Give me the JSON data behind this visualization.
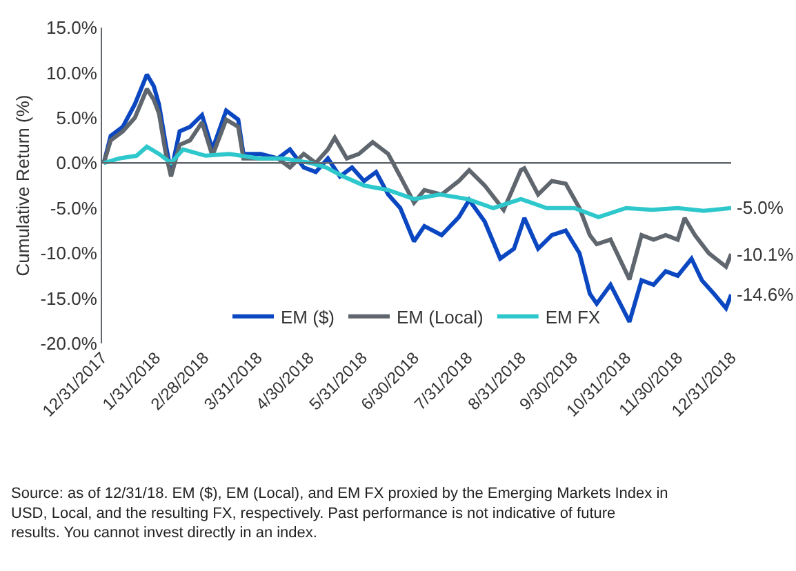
{
  "chart_data": {
    "type": "line",
    "ylabel": "Cumulative Return (%)",
    "xlim": [
      "2017-12-31",
      "2018-12-31"
    ],
    "xticks": [
      {
        "value": "2017-12-31",
        "label": "12/31/2017"
      },
      {
        "value": "2018-01-31",
        "label": "1/31/2018"
      },
      {
        "value": "2018-02-28",
        "label": "2/28/2018"
      },
      {
        "value": "2018-03-31",
        "label": "3/31/2018"
      },
      {
        "value": "2018-04-30",
        "label": "4/30/2018"
      },
      {
        "value": "2018-05-31",
        "label": "5/31/2018"
      },
      {
        "value": "2018-06-30",
        "label": "6/30/2018"
      },
      {
        "value": "2018-07-31",
        "label": "7/31/2018"
      },
      {
        "value": "2018-08-31",
        "label": "8/31/2018"
      },
      {
        "value": "2018-09-30",
        "label": "9/30/2018"
      },
      {
        "value": "2018-10-31",
        "label": "10/31/2018"
      },
      {
        "value": "2018-11-30",
        "label": "11/30/2018"
      },
      {
        "value": "2018-12-31",
        "label": "12/31/2018"
      }
    ],
    "ylim": [
      -20,
      15
    ],
    "yticks": [
      {
        "value": -20,
        "label": "-20.0%"
      },
      {
        "value": -15,
        "label": "-15.0%"
      },
      {
        "value": -10,
        "label": "-10.0%"
      },
      {
        "value": -5,
        "label": "-5.0%"
      },
      {
        "value": 0,
        "label": "0.0%"
      },
      {
        "value": 5,
        "label": "5.0%"
      },
      {
        "value": 10,
        "label": "10.0%"
      },
      {
        "value": 15,
        "label": "15.0%"
      }
    ],
    "grid": false,
    "legend": "bottom",
    "line_style": "solid",
    "marker": "none",
    "ref_lines": [
      {
        "axis": "y",
        "value": 0,
        "color": "#5f666d"
      }
    ],
    "series": [
      {
        "name": "EM ($)",
        "color": "#0b47c1",
        "x": [
          "2018-01-01",
          "2018-01-05",
          "2018-01-12",
          "2018-01-19",
          "2018-01-26",
          "2018-01-30",
          "2018-02-02",
          "2018-02-06",
          "2018-02-09",
          "2018-02-14",
          "2018-02-20",
          "2018-02-27",
          "2018-03-05",
          "2018-03-13",
          "2018-03-20",
          "2018-03-23",
          "2018-04-02",
          "2018-04-12",
          "2018-04-19",
          "2018-04-27",
          "2018-05-04",
          "2018-05-11",
          "2018-05-18",
          "2018-05-25",
          "2018-06-01",
          "2018-06-08",
          "2018-06-15",
          "2018-06-22",
          "2018-06-30",
          "2018-07-06",
          "2018-07-16",
          "2018-07-26",
          "2018-08-01",
          "2018-08-10",
          "2018-08-19",
          "2018-08-27",
          "2018-09-02",
          "2018-09-10",
          "2018-09-18",
          "2018-09-26",
          "2018-10-04",
          "2018-10-10",
          "2018-10-14",
          "2018-10-22",
          "2018-11-02",
          "2018-11-09",
          "2018-11-16",
          "2018-11-23",
          "2018-11-30",
          "2018-12-08",
          "2018-12-14",
          "2018-12-21",
          "2018-12-28",
          "2018-12-31"
        ],
        "values": [
          0,
          3,
          4,
          6.5,
          9.8,
          8.5,
          6.5,
          2,
          -1,
          3.5,
          4,
          5.3,
          1.5,
          5.8,
          4.8,
          1,
          1,
          0.5,
          1.5,
          -0.5,
          -1,
          0.5,
          -1.5,
          -0.5,
          -2,
          -1,
          -3.5,
          -5,
          -8.7,
          -7,
          -8,
          -6,
          -4.1,
          -6.5,
          -10.6,
          -9.5,
          -6.1,
          -9.5,
          -8,
          -7.5,
          -10,
          -14.5,
          -15.6,
          -13.5,
          -17.6,
          -13,
          -13.5,
          -12,
          -12.5,
          -10.6,
          -13,
          -14.5,
          -16.1,
          -14.6
        ]
      },
      {
        "name": "EM (Local)",
        "color": "#5f666d",
        "x": [
          "2018-01-01",
          "2018-01-05",
          "2018-01-12",
          "2018-01-19",
          "2018-01-26",
          "2018-01-30",
          "2018-02-02",
          "2018-02-06",
          "2018-02-09",
          "2018-02-14",
          "2018-02-20",
          "2018-02-27",
          "2018-03-05",
          "2018-03-13",
          "2018-03-20",
          "2018-03-23",
          "2018-04-02",
          "2018-04-12",
          "2018-04-19",
          "2018-04-27",
          "2018-05-04",
          "2018-05-11",
          "2018-05-15",
          "2018-05-22",
          "2018-05-29",
          "2018-06-06",
          "2018-06-15",
          "2018-06-22",
          "2018-06-30",
          "2018-07-06",
          "2018-07-16",
          "2018-07-26",
          "2018-08-01",
          "2018-08-10",
          "2018-08-21",
          "2018-08-31",
          "2018-09-02",
          "2018-09-10",
          "2018-09-18",
          "2018-09-26",
          "2018-10-04",
          "2018-10-10",
          "2018-10-14",
          "2018-10-22",
          "2018-11-02",
          "2018-11-09",
          "2018-11-16",
          "2018-11-23",
          "2018-11-30",
          "2018-12-04",
          "2018-12-10",
          "2018-12-18",
          "2018-12-28",
          "2018-12-31"
        ],
        "values": [
          0,
          2.5,
          3.5,
          5,
          8.2,
          7,
          5.5,
          1,
          -1.5,
          2,
          2.5,
          4.5,
          0.8,
          4.8,
          4,
          0.5,
          0.5,
          0.5,
          -0.5,
          1,
          0,
          1.5,
          2.8,
          0.5,
          1,
          2.3,
          1,
          -1.5,
          -4.4,
          -3,
          -3.5,
          -2,
          -0.8,
          -2.5,
          -5.2,
          -0.8,
          -0.6,
          -3.5,
          -2,
          -2.3,
          -5,
          -8,
          -9,
          -8.5,
          -12.9,
          -8,
          -8.5,
          -8,
          -8.5,
          -6.1,
          -8,
          -10,
          -11.5,
          -10.1
        ]
      },
      {
        "name": "EM FX",
        "color": "#2ec8cc",
        "x": [
          "2018-01-01",
          "2018-01-10",
          "2018-01-20",
          "2018-01-26",
          "2018-02-02",
          "2018-02-09",
          "2018-02-16",
          "2018-03-01",
          "2018-03-15",
          "2018-04-01",
          "2018-04-15",
          "2018-05-01",
          "2018-05-10",
          "2018-05-20",
          "2018-06-01",
          "2018-06-15",
          "2018-06-30",
          "2018-07-15",
          "2018-07-31",
          "2018-08-15",
          "2018-08-31",
          "2018-09-15",
          "2018-10-01",
          "2018-10-15",
          "2018-10-31",
          "2018-11-15",
          "2018-11-30",
          "2018-12-15",
          "2018-12-31"
        ],
        "values": [
          0,
          0.5,
          0.8,
          1.8,
          1,
          0,
          1.5,
          0.8,
          1,
          0.5,
          0.5,
          0,
          -0.5,
          -1.5,
          -2.5,
          -3,
          -4,
          -3.5,
          -4,
          -5,
          -4,
          -5,
          -5,
          -6,
          -5,
          -5.2,
          -5,
          -5.3,
          -5
        ]
      }
    ],
    "annotations": [
      {
        "text": "-5.0%",
        "x": "2018-12-31",
        "y": -5
      },
      {
        "text": "-10.1%",
        "x": "2018-12-31",
        "y": -10.1
      },
      {
        "text": "-14.6%",
        "x": "2018-12-31",
        "y": -14.6
      },
      "Source: as of 12/31/18. EM ($), EM (Local), and EM FX proxied by the Emerging Markets Index in USD, Local, and the resulting FX, respectively. Past performance is not indicative of future results. You cannot invest directly in an index."
    ]
  }
}
